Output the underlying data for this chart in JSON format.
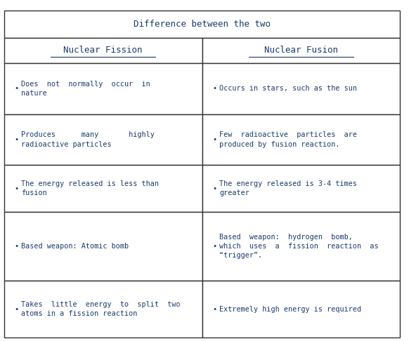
{
  "title": "Difference between the two",
  "col1_header": "Nuclear Fission",
  "col2_header": "Nuclear Fusion",
  "text_color": "#1a3a6b",
  "border_color": "#333333",
  "bg_color": "#ffffff",
  "rows": [
    {
      "fission": "Does  not  normally  occur  in\nnature",
      "fusion": "Occurs in stars, such as the sun"
    },
    {
      "fission": "Produces      many       highly\nradioactive particles",
      "fusion": "Few  radioactive  particles  are\nproduced by fusion reaction."
    },
    {
      "fission": "The energy released is less than\nfusion",
      "fusion": "The energy released is 3-4 times\ngreater"
    },
    {
      "fission": "Based weapon: Atomic bomb",
      "fusion": "Based  weapon:  hydrogen  bomb,\nwhich  uses  a  fission  reaction  as\n“trigger”."
    },
    {
      "fission": "Takes  little  energy  to  split  two\natoms in a fission reaction",
      "fusion": "Extremely high energy is required"
    }
  ]
}
